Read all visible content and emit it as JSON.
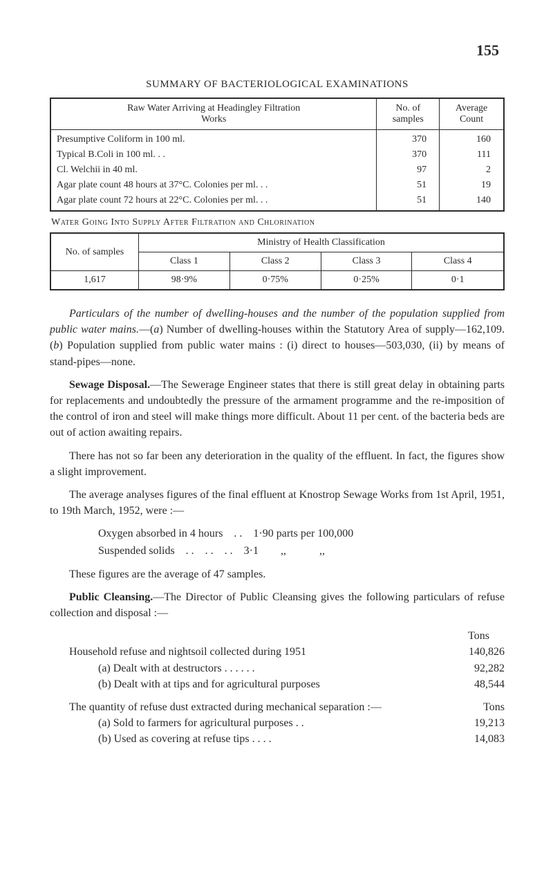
{
  "page_number": "155",
  "summary_title": "SUMMARY OF BACTERIOLOGICAL EXAMINATIONS",
  "table1": {
    "header_main": "Raw Water Arriving at Headingley Filtration\nWorks",
    "header_c2": "No. of\nsamples",
    "header_c3": "Average\nCount",
    "rows": [
      {
        "label": "Presumptive Coliform in 100 ml.",
        "c2": "370",
        "c3": "160"
      },
      {
        "label": "Typical B.Coli in 100 ml. . .",
        "c2": "370",
        "c3": "111"
      },
      {
        "label": "Cl. Welchii in 40 ml.",
        "c2": "97",
        "c3": "2"
      },
      {
        "label": "Agar plate count 48 hours at 37°C. Colonies per ml. . .",
        "c2": "51",
        "c3": "19"
      },
      {
        "label": "Agar plate count 72 hours at 22°C. Colonies per ml. . .",
        "c2": "51",
        "c3": "140"
      }
    ]
  },
  "t2_title": "Water Going Into Supply After Filtration and Chlorination",
  "table2": {
    "ministry": "Ministry of Health Classification",
    "h_samples": "No. of samples",
    "h_c1": "Class 1",
    "h_c2": "Class 2",
    "h_c3": "Class 3",
    "h_c4": "Class 4",
    "v_samples": "1,617",
    "v_c1": "98·9%",
    "v_c2": "0·75%",
    "v_c3": "0·25%",
    "v_c4": "0·1"
  },
  "para_particulars_html": "<em>Particulars of the number of dwelling-houses and the number of the population supplied from public water mains.</em>—(<em>a</em>) Number of dwelling-houses within the Statutory Area of supply—162,109. (<em>b</em>) Population supplied from public water mains : (i) direct to houses—503,030, (ii) by means of stand-pipes—none.",
  "para_sewage": "Sewage Disposal.—The Sewerage Engineer states that there is still great delay in obtaining parts for replacements and undoubtedly the pressure of the armament programme and the re-imposition of the control of iron and steel will make things more difficult. About 11 per cent. of the bacteria beds are out of action awaiting repairs.",
  "para_sewage_bold": "Sewage Disposal.",
  "para_effluent": "There has not so far been any deterioration in the quality of the effluent. In fact, the figures show a slight improvement.",
  "para_knostrop": "The average analyses figures of the final effluent at Knostrop Sewage Works from 1st April, 1951, to 19th March, 1952, were :—",
  "oxy_line": "Oxygen absorbed in 4 hours . . 1·90 parts per 100,000",
  "susp_line": "Suspended solids . . . . . . 3·1  ,,   ,,",
  "para_47": "These figures are the average of 47 samples.",
  "para_cleansing": "Public Cleansing.—The Director of Public Cleansing gives the following particulars of refuse collection and disposal :—",
  "para_cleansing_bold": "Public Cleansing.",
  "tons_label": "Tons",
  "household_line": "Household refuse and nightsoil collected during 1951",
  "household_val": "140,826",
  "dealt_a": "(a) Dealt with at destructors  . .      . .      . .",
  "dealt_a_val": "92,282",
  "dealt_b": "(b) Dealt with at tips and for agricultural purposes",
  "dealt_b_val": "48,544",
  "para_qty": "The quantity of refuse dust extracted during mechanical separation :—",
  "tons_label2": "Tons",
  "sold_a": "(a) Sold to farmers for agricultural purposes    . .",
  "sold_a_val": "19,213",
  "used_b": "(b) Used as covering at refuse tips    . .      . .",
  "used_b_val": "14,083"
}
